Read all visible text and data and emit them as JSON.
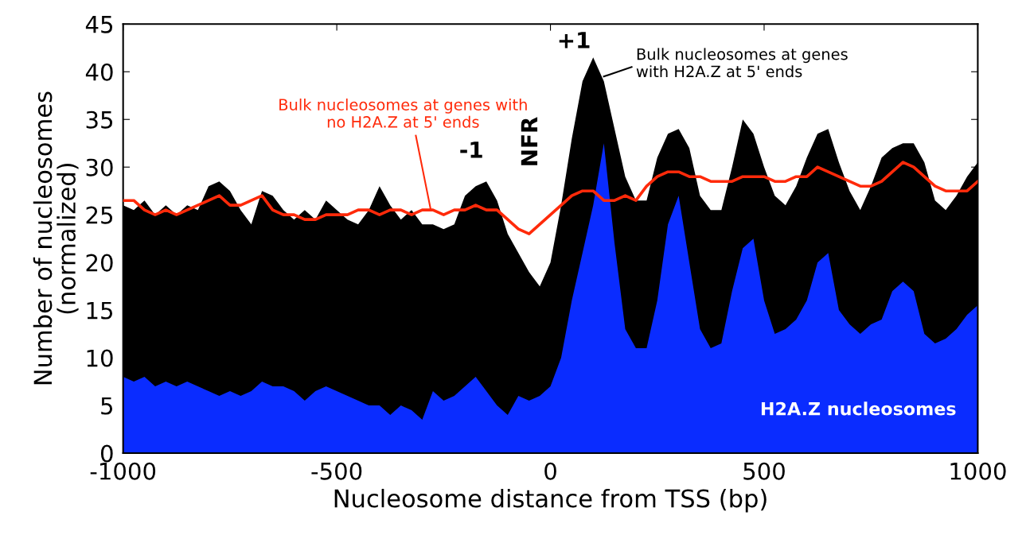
{
  "chart_data": {
    "type": "area",
    "xlabel": "Nucleosome distance from TSS (bp)",
    "ylabel": "Number of nucleosomes\n(normalized)",
    "x": [
      -1000,
      -975,
      -950,
      -925,
      -900,
      -875,
      -850,
      -825,
      -800,
      -775,
      -750,
      -725,
      -700,
      -675,
      -650,
      -625,
      -600,
      -575,
      -550,
      -525,
      -500,
      -475,
      -450,
      -425,
      -400,
      -375,
      -350,
      -325,
      -300,
      -275,
      -250,
      -225,
      -200,
      -175,
      -150,
      -125,
      -100,
      -75,
      -50,
      -25,
      0,
      25,
      50,
      75,
      100,
      125,
      150,
      175,
      200,
      225,
      250,
      275,
      300,
      325,
      350,
      375,
      400,
      425,
      450,
      475,
      500,
      525,
      550,
      575,
      600,
      625,
      650,
      675,
      700,
      725,
      750,
      775,
      800,
      825,
      850,
      875,
      900,
      925,
      950,
      975,
      1000
    ],
    "series": [
      {
        "name": "Bulk nucleosomes at genes with H2A.Z at 5' ends",
        "color": "#000000",
        "values": [
          26,
          25.5,
          26.5,
          25,
          26,
          25,
          26,
          25.5,
          28,
          28.5,
          27.5,
          25.5,
          24,
          27.5,
          27,
          25.5,
          24.5,
          25.5,
          24.5,
          26.5,
          25.5,
          24.5,
          24,
          25.5,
          28,
          26,
          24.5,
          25.5,
          24,
          24,
          23.5,
          24,
          27,
          28,
          28.5,
          26.5,
          23,
          21,
          19,
          17.5,
          20,
          26,
          33,
          39,
          41.5,
          39,
          34,
          29,
          26.5,
          26.5,
          31,
          33.5,
          34,
          32,
          27,
          25.5,
          25.5,
          30,
          35,
          33.5,
          30,
          27,
          26,
          28,
          31,
          33.5,
          34,
          30.5,
          27.5,
          25.5,
          28,
          31,
          32,
          32.5,
          32.5,
          30.5,
          26.5,
          25.5,
          27,
          29,
          30.5
        ]
      },
      {
        "name": "H2A.Z nucleosomes",
        "color": "#0a2cff",
        "values": [
          8,
          7.5,
          8,
          7,
          7.5,
          7,
          7.5,
          7,
          6.5,
          6,
          6.5,
          6,
          6.5,
          7.5,
          7,
          7,
          6.5,
          5.5,
          6.5,
          7,
          6.5,
          6,
          5.5,
          5,
          5,
          4,
          5,
          4.5,
          3.5,
          6.5,
          5.5,
          6,
          7,
          8,
          6.5,
          5,
          4,
          6,
          5.5,
          6,
          7,
          10,
          16,
          21,
          26,
          32.5,
          22,
          13,
          11,
          11,
          16,
          24,
          27,
          20,
          13,
          11,
          11.5,
          17,
          21.5,
          22.5,
          16,
          12.5,
          13,
          14,
          16,
          20,
          21,
          15,
          13.5,
          12.5,
          13.5,
          14,
          17,
          18,
          17,
          12.5,
          11.5,
          12,
          13,
          14.5,
          15.5
        ]
      },
      {
        "name": "Bulk nucleosomes at genes with no H2A.Z at 5' ends",
        "color": "#ff2a0a",
        "type": "line",
        "values": [
          26.5,
          26.5,
          25.5,
          25,
          25.5,
          25,
          25.5,
          26,
          26.5,
          27,
          26,
          26,
          26.5,
          27,
          25.5,
          25,
          25,
          24.5,
          24.5,
          25,
          25,
          25,
          25.5,
          25.5,
          25,
          25.5,
          25.5,
          25,
          25.5,
          25.5,
          25,
          25.5,
          25.5,
          26,
          25.5,
          25.5,
          24.5,
          23.5,
          23,
          24,
          25,
          26,
          27,
          27.5,
          27.5,
          26.5,
          26.5,
          27,
          26.5,
          28,
          29,
          29.5,
          29.5,
          29,
          29,
          28.5,
          28.5,
          28.5,
          29,
          29,
          29,
          28.5,
          28.5,
          29,
          29,
          30,
          29.5,
          29,
          28.5,
          28,
          28,
          28.5,
          29.5,
          30.5,
          30,
          29,
          28,
          27.5,
          27.5,
          27.5,
          28.5
        ]
      }
    ],
    "annotations": [
      "+1",
      "-1",
      "NFR"
    ],
    "xlim": [
      -1000,
      1000
    ],
    "xticks": [
      -1000,
      -500,
      0,
      500,
      1000
    ],
    "ylim": [
      0,
      45
    ],
    "yticks": [
      0,
      5,
      10,
      15,
      20,
      25,
      30,
      35,
      40,
      45
    ],
    "grid": false,
    "marker": "none",
    "line_style": "solid"
  }
}
